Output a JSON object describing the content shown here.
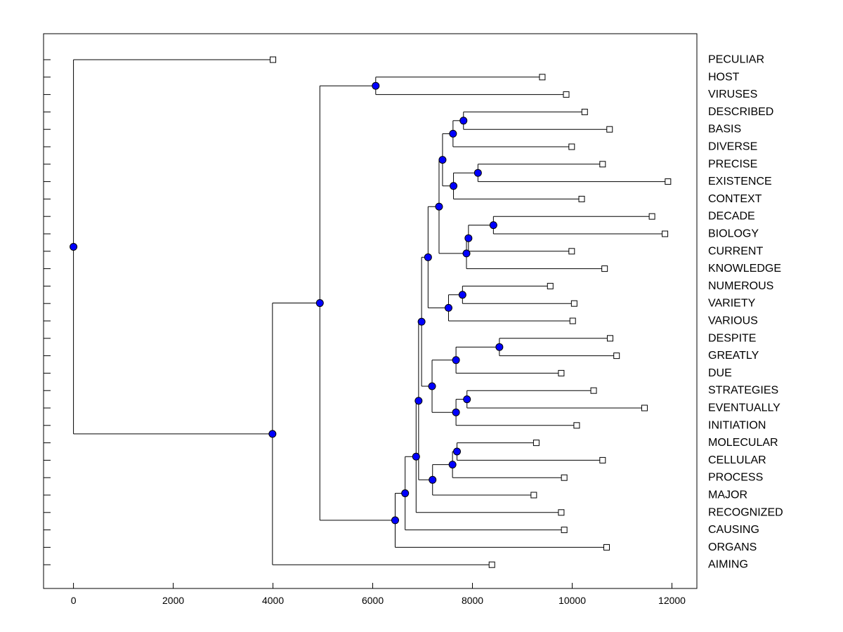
{
  "chart_data": {
    "type": "dendrogram",
    "orientation": "horizontal",
    "title": "",
    "xlabel": "",
    "ylabel": "",
    "xlim": [
      -600,
      12500
    ],
    "xticks": [
      0,
      2000,
      4000,
      6000,
      8000,
      10000,
      12000
    ],
    "grid": false,
    "colors": {
      "line": "#000000",
      "internal_node_fill": "#0000ff",
      "leaf_marker_fill": "#ffffff"
    },
    "leaves": [
      {
        "label": "PECULIAR",
        "x": 4000
      },
      {
        "label": "HOST",
        "x": 9400
      },
      {
        "label": "VIRUSES",
        "x": 9880
      },
      {
        "label": "DESCRIBED",
        "x": 10250
      },
      {
        "label": "BASIS",
        "x": 10750
      },
      {
        "label": "DIVERSE",
        "x": 9990
      },
      {
        "label": "PRECISE",
        "x": 10610
      },
      {
        "label": "EXISTENCE",
        "x": 11920
      },
      {
        "label": "CONTEXT",
        "x": 10190
      },
      {
        "label": "DECADE",
        "x": 11600
      },
      {
        "label": "BIOLOGY",
        "x": 11860
      },
      {
        "label": "CURRENT",
        "x": 9990
      },
      {
        "label": "KNOWLEDGE",
        "x": 10650
      },
      {
        "label": "NUMEROUS",
        "x": 9560
      },
      {
        "label": "VARIETY",
        "x": 10040
      },
      {
        "label": "VARIOUS",
        "x": 10010
      },
      {
        "label": "DESPITE",
        "x": 10760
      },
      {
        "label": "GREATLY",
        "x": 10890
      },
      {
        "label": "DUE",
        "x": 9780
      },
      {
        "label": "STRATEGIES",
        "x": 10430
      },
      {
        "label": "EVENTUALLY",
        "x": 11450
      },
      {
        "label": "INITIATION",
        "x": 10090
      },
      {
        "label": "MOLECULAR",
        "x": 9280
      },
      {
        "label": "CELLULAR",
        "x": 10610
      },
      {
        "label": "PROCESS",
        "x": 9840
      },
      {
        "label": "MAJOR",
        "x": 9230
      },
      {
        "label": "RECOGNIZED",
        "x": 9780
      },
      {
        "label": "CAUSING",
        "x": 9840
      },
      {
        "label": "ORGANS",
        "x": 10690
      },
      {
        "label": "AIMING",
        "x": 8390
      }
    ],
    "merges": [
      {
        "id": "n1",
        "x": 6060,
        "children": [
          "HOST",
          "VIRUSES"
        ]
      },
      {
        "id": "n2",
        "x": 7820,
        "children": [
          "DESCRIBED",
          "BASIS"
        ]
      },
      {
        "id": "n3",
        "x": 7610,
        "children": [
          "n2",
          "DIVERSE"
        ]
      },
      {
        "id": "n4",
        "x": 8110,
        "children": [
          "PRECISE",
          "EXISTENCE"
        ]
      },
      {
        "id": "n5",
        "x": 7620,
        "children": [
          "n4",
          "CONTEXT"
        ]
      },
      {
        "id": "n6",
        "x": 7400,
        "children": [
          "n3",
          "n5"
        ]
      },
      {
        "id": "n7",
        "x": 8420,
        "children": [
          "DECADE",
          "BIOLOGY"
        ]
      },
      {
        "id": "n8",
        "x": 7920,
        "children": [
          "n7",
          "CURRENT"
        ]
      },
      {
        "id": "n9",
        "x": 7880,
        "children": [
          "n8",
          "KNOWLEDGE"
        ]
      },
      {
        "id": "n10",
        "x": 7330,
        "children": [
          "n6",
          "n9"
        ]
      },
      {
        "id": "n11",
        "x": 7800,
        "children": [
          "NUMEROUS",
          "VARIETY"
        ]
      },
      {
        "id": "n12",
        "x": 7520,
        "children": [
          "n11",
          "VARIOUS"
        ]
      },
      {
        "id": "n13",
        "x": 7110,
        "children": [
          "n10",
          "n12"
        ]
      },
      {
        "id": "n14",
        "x": 8540,
        "children": [
          "DESPITE",
          "GREATLY"
        ]
      },
      {
        "id": "n15",
        "x": 7670,
        "children": [
          "n14",
          "DUE"
        ]
      },
      {
        "id": "n16",
        "x": 7890,
        "children": [
          "STRATEGIES",
          "EVENTUALLY"
        ]
      },
      {
        "id": "n17",
        "x": 7670,
        "children": [
          "n16",
          "INITIATION"
        ]
      },
      {
        "id": "n18",
        "x": 7190,
        "children": [
          "n15",
          "n17"
        ]
      },
      {
        "id": "n19",
        "x": 6980,
        "children": [
          "n13",
          "n18"
        ]
      },
      {
        "id": "n20",
        "x": 7690,
        "children": [
          "MOLECULAR",
          "CELLULAR"
        ]
      },
      {
        "id": "n21",
        "x": 7600,
        "children": [
          "n20",
          "PROCESS"
        ]
      },
      {
        "id": "n22",
        "x": 7200,
        "children": [
          "n21",
          "MAJOR"
        ]
      },
      {
        "id": "n23",
        "x": 6920,
        "children": [
          "n19",
          "n22"
        ]
      },
      {
        "id": "n24",
        "x": 6870,
        "children": [
          "n23",
          "RECOGNIZED"
        ]
      },
      {
        "id": "n25",
        "x": 6650,
        "children": [
          "n24",
          "CAUSING"
        ]
      },
      {
        "id": "n26",
        "x": 6450,
        "children": [
          "n25",
          "ORGANS"
        ]
      },
      {
        "id": "n27",
        "x": 4940,
        "children": [
          "n1",
          "n26"
        ]
      },
      {
        "id": "n28",
        "x": 3990,
        "children": [
          "n27",
          "AIMING"
        ]
      },
      {
        "id": "n29",
        "x": 0,
        "children": [
          "PECULIAR",
          "n28"
        ]
      }
    ]
  }
}
